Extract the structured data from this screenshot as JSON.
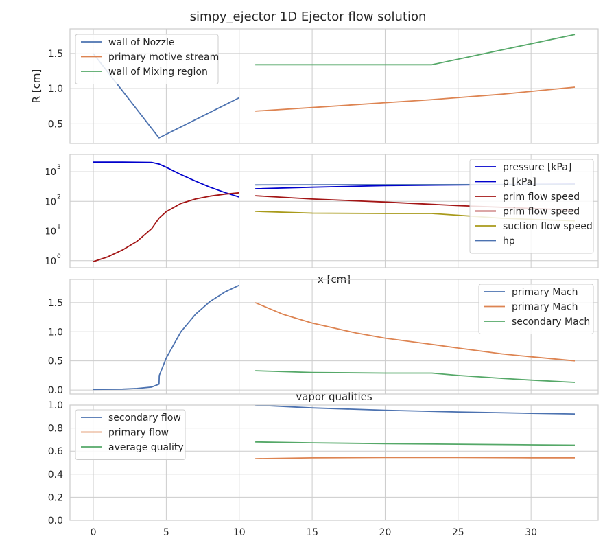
{
  "figure": {
    "title": "simpy_ejector 1D Ejector flow solution"
  },
  "chart_data": [
    {
      "type": "line",
      "ylabel": "R [cm]",
      "xlim": [
        -1.6,
        34.6
      ],
      "ylim": [
        0.22,
        1.85
      ],
      "yticks": [
        0.5,
        1.0,
        1.5
      ],
      "ytick_labels": [
        "0.5",
        "1.0",
        "1.5"
      ],
      "legend_position": "upper-left",
      "series": [
        {
          "name": "wall of Nozzle",
          "color": "#4c72b0",
          "points": [
            [
              0,
              1.5
            ],
            [
              4.5,
              0.3
            ],
            [
              10,
              0.87
            ]
          ]
        },
        {
          "name": "primary motive stream",
          "color": "#dd8452",
          "points": [
            [
              11.1,
              0.68
            ],
            [
              15,
              0.73
            ],
            [
              20,
              0.8
            ],
            [
              23,
              0.84
            ],
            [
              28,
              0.92
            ],
            [
              33,
              1.02
            ]
          ]
        },
        {
          "name": "wall of Mixing region",
          "color": "#55a868",
          "points": [
            [
              11.1,
              1.34
            ],
            [
              23.2,
              1.34
            ],
            [
              33,
              1.77
            ]
          ]
        }
      ]
    },
    {
      "type": "line",
      "yscale": "log",
      "xlabel": "x [cm]",
      "xlim": [
        -1.6,
        34.6
      ],
      "ylim": [
        0.58,
        3800
      ],
      "yticks": [
        1,
        10,
        100,
        1000
      ],
      "ytick_labels": [
        {
          "base": "10",
          "exp": "0"
        },
        {
          "base": "10",
          "exp": "1"
        },
        {
          "base": "10",
          "exp": "2"
        },
        {
          "base": "10",
          "exp": "3"
        }
      ],
      "legend_position": "right",
      "series": [
        {
          "name": "pressure [kPa]",
          "color": "#0000cc",
          "points": [
            [
              0,
              2100
            ],
            [
              2,
              2100
            ],
            [
              4,
              2050
            ],
            [
              4.5,
              1800
            ],
            [
              5,
              1400
            ],
            [
              6,
              800
            ],
            [
              7,
              480
            ],
            [
              8,
              300
            ],
            [
              9,
              200
            ],
            [
              10,
              140
            ]
          ]
        },
        {
          "name": "p [kPa]",
          "color": "#0000cc",
          "points": [
            [
              11.1,
              265
            ],
            [
              15,
              300
            ],
            [
              20,
              340
            ],
            [
              25,
              360
            ],
            [
              30,
              375
            ],
            [
              33,
              380
            ]
          ]
        },
        {
          "name": "prim flow speed",
          "color": "#a31515",
          "points": [
            [
              0,
              0.93
            ],
            [
              1,
              1.35
            ],
            [
              2,
              2.3
            ],
            [
              3,
              4.5
            ],
            [
              4,
              12
            ],
            [
              4.5,
              27
            ],
            [
              5,
              45
            ],
            [
              6,
              85
            ],
            [
              7,
              120
            ],
            [
              8,
              150
            ],
            [
              9,
              175
            ],
            [
              10,
              195
            ]
          ]
        },
        {
          "name": "prim flow speed",
          "color": "#a31515",
          "points": [
            [
              11.1,
              155
            ],
            [
              15,
              120
            ],
            [
              20,
              95
            ],
            [
              25,
              72
            ],
            [
              30,
              58
            ],
            [
              33,
              50
            ]
          ]
        },
        {
          "name": "suction flow speed",
          "color": "#a89a1a",
          "points": [
            [
              11.1,
              46
            ],
            [
              15,
              40
            ],
            [
              20,
              39
            ],
            [
              23.2,
              39
            ],
            [
              28,
              27
            ],
            [
              33,
              22
            ]
          ]
        },
        {
          "name": "hp",
          "color": "#4c72b0",
          "points": [
            [
              11.1,
              360
            ],
            [
              20,
              365
            ],
            [
              33,
              370
            ]
          ]
        }
      ]
    },
    {
      "type": "line",
      "xlim": [
        -1.6,
        34.6
      ],
      "ylim": [
        -0.07,
        1.9
      ],
      "yticks": [
        0.0,
        0.5,
        1.0,
        1.5
      ],
      "ytick_labels": [
        "0.0",
        "0.5",
        "1.0",
        "1.5"
      ],
      "legend_position": "upper-right",
      "series": [
        {
          "name": "primary Mach",
          "color": "#4c72b0",
          "points": [
            [
              0,
              0.01
            ],
            [
              2,
              0.015
            ],
            [
              3,
              0.025
            ],
            [
              4,
              0.05
            ],
            [
              4.5,
              0.1
            ],
            [
              4.52,
              0.25
            ],
            [
              5,
              0.55
            ],
            [
              6,
              1.0
            ],
            [
              7,
              1.3
            ],
            [
              8,
              1.52
            ],
            [
              9,
              1.68
            ],
            [
              10,
              1.8
            ]
          ]
        },
        {
          "name": "primary Mach",
          "color": "#dd8452",
          "points": [
            [
              11.1,
              1.5
            ],
            [
              13,
              1.3
            ],
            [
              15,
              1.15
            ],
            [
              18,
              0.98
            ],
            [
              20,
              0.89
            ],
            [
              23,
              0.79
            ],
            [
              25,
              0.72
            ],
            [
              28,
              0.62
            ],
            [
              30,
              0.57
            ],
            [
              33,
              0.5
            ]
          ]
        },
        {
          "name": "secondary Mach",
          "color": "#55a868",
          "points": [
            [
              11.1,
              0.33
            ],
            [
              15,
              0.3
            ],
            [
              20,
              0.29
            ],
            [
              23.2,
              0.29
            ],
            [
              25,
              0.25
            ],
            [
              28,
              0.2
            ],
            [
              30,
              0.17
            ],
            [
              33,
              0.13
            ]
          ]
        }
      ]
    },
    {
      "type": "line",
      "title": "vapor qualities",
      "xlim": [
        -1.6,
        34.6
      ],
      "ylim": [
        0.0,
        1.0
      ],
      "yticks": [
        0.0,
        0.2,
        0.4,
        0.6,
        0.8,
        1.0
      ],
      "ytick_labels": [
        "0.0",
        "0.2",
        "0.4",
        "0.6",
        "0.8",
        "1.0"
      ],
      "xticks": [
        0,
        5,
        10,
        15,
        20,
        25,
        30
      ],
      "xtick_labels": [
        "0",
        "5",
        "10",
        "15",
        "20",
        "25",
        "30"
      ],
      "legend_position": "upper-left",
      "series": [
        {
          "name": "secondary flow",
          "color": "#4c72b0",
          "points": [
            [
              11.1,
              1.0
            ],
            [
              15,
              0.975
            ],
            [
              20,
              0.955
            ],
            [
              25,
              0.94
            ],
            [
              30,
              0.928
            ],
            [
              33,
              0.922
            ]
          ]
        },
        {
          "name": "primary flow",
          "color": "#dd8452",
          "points": [
            [
              11.1,
              0.535
            ],
            [
              15,
              0.542
            ],
            [
              20,
              0.545
            ],
            [
              25,
              0.545
            ],
            [
              30,
              0.543
            ],
            [
              33,
              0.543
            ]
          ]
        },
        {
          "name": "average quality",
          "color": "#55a868",
          "points": [
            [
              11.1,
              0.68
            ],
            [
              15,
              0.672
            ],
            [
              20,
              0.665
            ],
            [
              25,
              0.66
            ],
            [
              30,
              0.655
            ],
            [
              33,
              0.652
            ]
          ]
        }
      ]
    }
  ]
}
